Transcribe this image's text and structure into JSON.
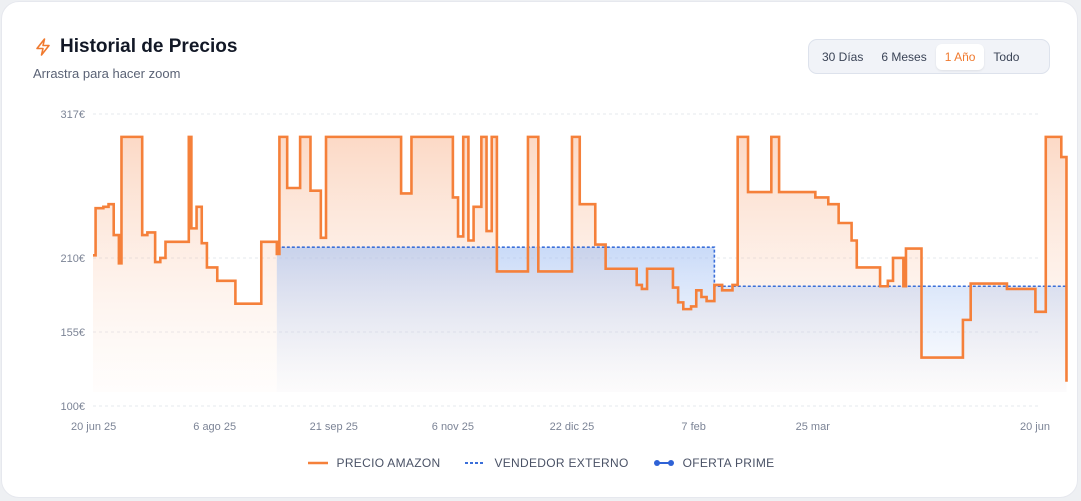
{
  "header": {
    "title": "Historial de Precios",
    "subtitle": "Arrastra para hacer zoom",
    "icon": "lightning-icon"
  },
  "ranges": {
    "options": [
      "30 Días",
      "6 Meses",
      "1 Año",
      "Todo"
    ],
    "selected": "1 Año"
  },
  "colors": {
    "amazon": "#f5803a",
    "external": "#3b6fd9",
    "prime": "#2f62d6",
    "grid": "#e6e8ee",
    "axis_text": "#7c8496"
  },
  "chart_data": {
    "type": "line",
    "step": true,
    "ylim": [
      100,
      317
    ],
    "y_ticks": [
      "100€",
      "155€",
      "210€",
      "317€"
    ],
    "y_tick_values": [
      100,
      155,
      210,
      317
    ],
    "x_ticks": [
      "20 jun 25",
      "6 ago 25",
      "21 sep 25",
      "6 nov 25",
      "22 dic 25",
      "7 feb",
      "25 mar",
      "20 jun"
    ],
    "x_tick_dates": [
      "2025-06-20",
      "2025-08-06",
      "2025-09-21",
      "2025-11-06",
      "2025-12-22",
      "2026-02-07",
      "2026-03-25",
      "2026-06-20"
    ],
    "grid": true,
    "legend_position": "bottom",
    "legend": [
      "PRECIO AMAZON",
      "VENDEDOR EXTERNO",
      "OFERTA PRIME"
    ],
    "series": [
      {
        "name": "PRECIO AMAZON",
        "style": "step-line-filled",
        "points": [
          [
            "2025-06-20",
            212
          ],
          [
            "2025-06-21",
            247
          ],
          [
            "2025-06-24",
            248
          ],
          [
            "2025-06-26",
            250
          ],
          [
            "2025-06-28",
            227
          ],
          [
            "2025-06-30",
            206
          ],
          [
            "2025-07-01",
            300
          ],
          [
            "2025-07-09",
            227
          ],
          [
            "2025-07-11",
            229
          ],
          [
            "2025-07-14",
            207
          ],
          [
            "2025-07-16",
            210
          ],
          [
            "2025-07-18",
            222
          ],
          [
            "2025-07-27",
            300
          ],
          [
            "2025-07-28",
            232
          ],
          [
            "2025-07-30",
            248
          ],
          [
            "2025-08-01",
            221
          ],
          [
            "2025-08-03",
            203
          ],
          [
            "2025-08-07",
            193
          ],
          [
            "2025-08-14",
            176
          ],
          [
            "2025-08-24",
            222
          ],
          [
            "2025-08-30",
            213
          ],
          [
            "2025-08-31",
            300
          ],
          [
            "2025-09-03",
            262
          ],
          [
            "2025-09-08",
            300
          ],
          [
            "2025-09-12",
            260
          ],
          [
            "2025-09-16",
            225
          ],
          [
            "2025-09-18",
            300
          ],
          [
            "2025-10-15",
            300
          ],
          [
            "2025-10-17",
            258
          ],
          [
            "2025-10-21",
            300
          ],
          [
            "2025-11-04",
            300
          ],
          [
            "2025-11-06",
            255
          ],
          [
            "2025-11-08",
            226
          ],
          [
            "2025-11-10",
            300
          ],
          [
            "2025-11-12",
            223
          ],
          [
            "2025-11-14",
            248
          ],
          [
            "2025-11-17",
            300
          ],
          [
            "2025-11-19",
            230
          ],
          [
            "2025-11-21",
            300
          ],
          [
            "2025-11-23",
            200
          ],
          [
            "2025-12-05",
            300
          ],
          [
            "2025-12-09",
            200
          ],
          [
            "2025-12-22",
            300
          ],
          [
            "2025-12-25",
            250
          ],
          [
            "2025-12-31",
            220
          ],
          [
            "2026-01-04",
            202
          ],
          [
            "2026-01-16",
            190
          ],
          [
            "2026-01-18",
            187
          ],
          [
            "2026-01-20",
            202
          ],
          [
            "2026-01-30",
            188
          ],
          [
            "2026-02-01",
            177
          ],
          [
            "2026-02-03",
            172
          ],
          [
            "2026-02-06",
            174
          ],
          [
            "2026-02-08",
            186
          ],
          [
            "2026-02-10",
            181
          ],
          [
            "2026-02-12",
            178
          ],
          [
            "2026-02-15",
            190
          ],
          [
            "2026-02-18",
            186
          ],
          [
            "2026-02-22",
            190
          ],
          [
            "2026-02-24",
            300
          ],
          [
            "2026-02-28",
            259
          ],
          [
            "2026-03-09",
            300
          ],
          [
            "2026-03-12",
            259
          ],
          [
            "2026-03-26",
            255
          ],
          [
            "2026-03-31",
            250
          ],
          [
            "2026-04-04",
            236
          ],
          [
            "2026-04-09",
            223
          ],
          [
            "2026-04-11",
            203
          ],
          [
            "2026-04-20",
            189
          ],
          [
            "2026-04-23",
            193
          ],
          [
            "2026-04-25",
            210
          ],
          [
            "2026-04-29",
            189
          ],
          [
            "2026-04-30",
            217
          ],
          [
            "2026-05-06",
            136
          ],
          [
            "2026-05-22",
            164
          ],
          [
            "2026-05-25",
            191
          ],
          [
            "2026-06-08",
            187
          ],
          [
            "2026-06-19",
            170
          ],
          [
            "2026-06-23",
            300
          ],
          [
            "2026-06-29",
            285
          ],
          [
            "2026-07-01",
            118
          ]
        ]
      },
      {
        "name": "VENDEDOR EXTERNO",
        "style": "step-dashed-filled",
        "points": [
          [
            "2025-08-30",
            218
          ],
          [
            "2026-02-14",
            218
          ],
          [
            "2026-02-15",
            189
          ],
          [
            "2026-07-01",
            189
          ]
        ]
      },
      {
        "name": "OFERTA PRIME",
        "style": "dot-line",
        "points": []
      }
    ]
  }
}
